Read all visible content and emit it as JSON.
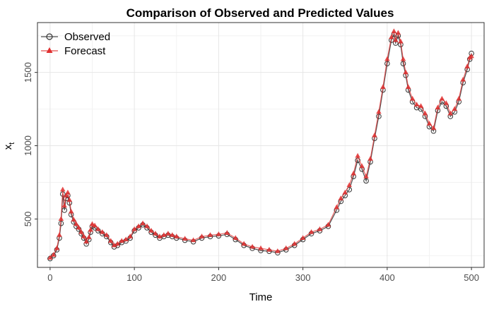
{
  "chart_data": {
    "type": "line",
    "title": "Comparison of Observed and Predicted Values",
    "xlabel": "Time",
    "ylabel": "x",
    "ylabel_subscript": "t",
    "xlim": [
      -15,
      515
    ],
    "ylim": [
      170,
      1840
    ],
    "xticks": [
      0,
      100,
      200,
      300,
      400,
      500
    ],
    "yticks": [
      500,
      1000,
      1500
    ],
    "grid": true,
    "legend_position": "top-left",
    "series": [
      {
        "name": "Observed",
        "color": "#333333",
        "marker": "open-circle",
        "points": [
          [
            0,
            230
          ],
          [
            4,
            250
          ],
          [
            8,
            290
          ],
          [
            11,
            370
          ],
          [
            13,
            470
          ],
          [
            15,
            670
          ],
          [
            17,
            560
          ],
          [
            19,
            640
          ],
          [
            21,
            660
          ],
          [
            23,
            610
          ],
          [
            25,
            530
          ],
          [
            28,
            480
          ],
          [
            31,
            450
          ],
          [
            34,
            430
          ],
          [
            37,
            400
          ],
          [
            40,
            370
          ],
          [
            43,
            330
          ],
          [
            46,
            360
          ],
          [
            48,
            410
          ],
          [
            50,
            450
          ],
          [
            53,
            440
          ],
          [
            57,
            420
          ],
          [
            62,
            400
          ],
          [
            67,
            380
          ],
          [
            72,
            340
          ],
          [
            76,
            310
          ],
          [
            80,
            320
          ],
          [
            85,
            340
          ],
          [
            90,
            350
          ],
          [
            95,
            370
          ],
          [
            100,
            420
          ],
          [
            105,
            440
          ],
          [
            110,
            460
          ],
          [
            115,
            440
          ],
          [
            120,
            410
          ],
          [
            125,
            390
          ],
          [
            130,
            370
          ],
          [
            135,
            380
          ],
          [
            140,
            390
          ],
          [
            145,
            380
          ],
          [
            150,
            370
          ],
          [
            160,
            355
          ],
          [
            170,
            345
          ],
          [
            180,
            370
          ],
          [
            190,
            380
          ],
          [
            200,
            385
          ],
          [
            210,
            395
          ],
          [
            220,
            360
          ],
          [
            230,
            320
          ],
          [
            240,
            300
          ],
          [
            250,
            285
          ],
          [
            260,
            280
          ],
          [
            270,
            270
          ],
          [
            280,
            290
          ],
          [
            290,
            320
          ],
          [
            300,
            360
          ],
          [
            310,
            400
          ],
          [
            320,
            420
          ],
          [
            330,
            450
          ],
          [
            340,
            560
          ],
          [
            345,
            620
          ],
          [
            350,
            660
          ],
          [
            355,
            700
          ],
          [
            360,
            790
          ],
          [
            365,
            900
          ],
          [
            370,
            840
          ],
          [
            375,
            760
          ],
          [
            380,
            890
          ],
          [
            385,
            1050
          ],
          [
            390,
            1200
          ],
          [
            395,
            1380
          ],
          [
            400,
            1560
          ],
          [
            405,
            1720
          ],
          [
            408,
            1760
          ],
          [
            410,
            1700
          ],
          [
            413,
            1750
          ],
          [
            416,
            1690
          ],
          [
            419,
            1560
          ],
          [
            422,
            1480
          ],
          [
            425,
            1380
          ],
          [
            430,
            1300
          ],
          [
            435,
            1260
          ],
          [
            440,
            1250
          ],
          [
            445,
            1200
          ],
          [
            450,
            1130
          ],
          [
            455,
            1100
          ],
          [
            460,
            1240
          ],
          [
            465,
            1300
          ],
          [
            470,
            1270
          ],
          [
            475,
            1200
          ],
          [
            480,
            1230
          ],
          [
            485,
            1300
          ],
          [
            490,
            1430
          ],
          [
            495,
            1520
          ],
          [
            498,
            1590
          ],
          [
            500,
            1630
          ]
        ]
      },
      {
        "name": "Forecast",
        "color": "#e03030",
        "marker": "filled-triangle",
        "points": [
          [
            0,
            235
          ],
          [
            4,
            255
          ],
          [
            8,
            300
          ],
          [
            11,
            390
          ],
          [
            13,
            500
          ],
          [
            15,
            700
          ],
          [
            17,
            590
          ],
          [
            19,
            660
          ],
          [
            21,
            680
          ],
          [
            23,
            630
          ],
          [
            25,
            550
          ],
          [
            28,
            495
          ],
          [
            31,
            465
          ],
          [
            34,
            440
          ],
          [
            37,
            410
          ],
          [
            40,
            380
          ],
          [
            43,
            345
          ],
          [
            46,
            375
          ],
          [
            48,
            425
          ],
          [
            50,
            465
          ],
          [
            53,
            455
          ],
          [
            57,
            430
          ],
          [
            62,
            410
          ],
          [
            67,
            390
          ],
          [
            72,
            350
          ],
          [
            76,
            320
          ],
          [
            80,
            330
          ],
          [
            85,
            350
          ],
          [
            90,
            360
          ],
          [
            95,
            380
          ],
          [
            100,
            430
          ],
          [
            105,
            450
          ],
          [
            110,
            470
          ],
          [
            115,
            450
          ],
          [
            120,
            420
          ],
          [
            125,
            400
          ],
          [
            130,
            380
          ],
          [
            135,
            390
          ],
          [
            140,
            400
          ],
          [
            145,
            390
          ],
          [
            150,
            380
          ],
          [
            160,
            365
          ],
          [
            170,
            355
          ],
          [
            180,
            380
          ],
          [
            190,
            390
          ],
          [
            200,
            395
          ],
          [
            210,
            405
          ],
          [
            220,
            370
          ],
          [
            230,
            330
          ],
          [
            240,
            310
          ],
          [
            250,
            300
          ],
          [
            260,
            290
          ],
          [
            270,
            280
          ],
          [
            280,
            300
          ],
          [
            290,
            330
          ],
          [
            300,
            370
          ],
          [
            310,
            410
          ],
          [
            320,
            430
          ],
          [
            330,
            460
          ],
          [
            340,
            580
          ],
          [
            345,
            640
          ],
          [
            350,
            680
          ],
          [
            355,
            730
          ],
          [
            360,
            810
          ],
          [
            365,
            930
          ],
          [
            370,
            860
          ],
          [
            375,
            790
          ],
          [
            380,
            910
          ],
          [
            385,
            1070
          ],
          [
            390,
            1230
          ],
          [
            395,
            1400
          ],
          [
            400,
            1590
          ],
          [
            405,
            1740
          ],
          [
            408,
            1780
          ],
          [
            410,
            1720
          ],
          [
            413,
            1770
          ],
          [
            416,
            1710
          ],
          [
            419,
            1590
          ],
          [
            422,
            1500
          ],
          [
            425,
            1400
          ],
          [
            430,
            1320
          ],
          [
            435,
            1280
          ],
          [
            440,
            1270
          ],
          [
            445,
            1220
          ],
          [
            450,
            1150
          ],
          [
            455,
            1120
          ],
          [
            460,
            1260
          ],
          [
            465,
            1320
          ],
          [
            470,
            1290
          ],
          [
            475,
            1220
          ],
          [
            480,
            1250
          ],
          [
            485,
            1320
          ],
          [
            490,
            1450
          ],
          [
            495,
            1540
          ],
          [
            498,
            1600
          ],
          [
            500,
            1610
          ]
        ]
      }
    ]
  }
}
